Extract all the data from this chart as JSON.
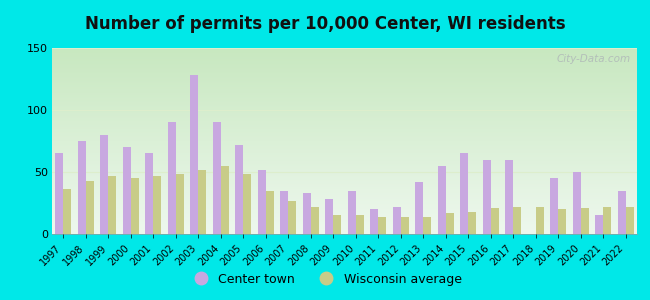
{
  "title": "Number of permits per 10,000 Center, WI residents",
  "years": [
    1997,
    1998,
    1999,
    2000,
    2001,
    2002,
    2003,
    2004,
    2005,
    2006,
    2007,
    2008,
    2009,
    2010,
    2011,
    2012,
    2013,
    2014,
    2015,
    2016,
    2017,
    2018,
    2019,
    2020,
    2021,
    2022
  ],
  "center_town": [
    65,
    75,
    80,
    70,
    65,
    90,
    128,
    90,
    72,
    52,
    35,
    33,
    28,
    35,
    20,
    22,
    42,
    55,
    65,
    60,
    60,
    0,
    45,
    50,
    15,
    35
  ],
  "wi_average": [
    36,
    43,
    47,
    45,
    47,
    48,
    52,
    55,
    48,
    35,
    27,
    22,
    15,
    15,
    14,
    14,
    14,
    17,
    18,
    21,
    22,
    22,
    20,
    21,
    22,
    22
  ],
  "center_color": "#c8a8e0",
  "wi_color": "#c8cc88",
  "ylim": [
    0,
    150
  ],
  "yticks": [
    0,
    50,
    100,
    150
  ],
  "outer_bg_color": "#00e8e8",
  "grid_color": "#ddeecc",
  "legend_center": "Center town",
  "legend_wi": "Wisconsin average",
  "title_fontsize": 12,
  "bar_width": 0.36
}
